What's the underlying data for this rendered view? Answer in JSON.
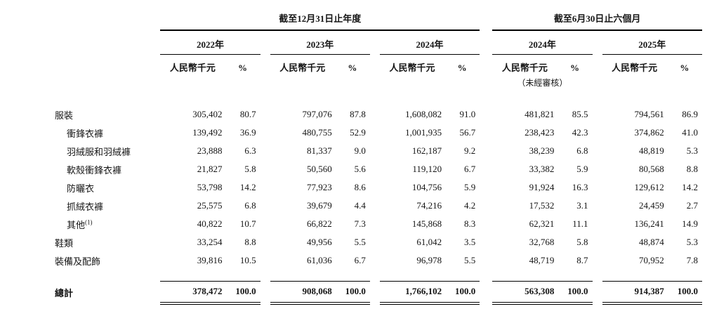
{
  "table": {
    "groups": [
      {
        "title": "截至12月31日止年度",
        "years": [
          "2022年",
          "2023年",
          "2024年"
        ]
      },
      {
        "title": "截至6月30日止六個月",
        "years": [
          "2024年",
          "2025年"
        ]
      }
    ],
    "col_headers": {
      "value": "人民幣千元",
      "pct": "%",
      "unaudited_note": "（未經審核）"
    },
    "rows": [
      {
        "label": "服裝",
        "indent": 0,
        "values": [
          "305,402",
          "80.7",
          "797,076",
          "87.8",
          "1,608,082",
          "91.0",
          "481,821",
          "85.5",
          "794,561",
          "86.9"
        ]
      },
      {
        "label": "衝鋒衣褲",
        "indent": 1,
        "values": [
          "139,492",
          "36.9",
          "480,755",
          "52.9",
          "1,001,935",
          "56.7",
          "238,423",
          "42.3",
          "374,862",
          "41.0"
        ]
      },
      {
        "label": "羽絨服和羽絨褲",
        "indent": 1,
        "values": [
          "23,888",
          "6.3",
          "81,337",
          "9.0",
          "162,187",
          "9.2",
          "38,239",
          "6.8",
          "48,819",
          "5.3"
        ]
      },
      {
        "label": "軟殼衝鋒衣褲",
        "indent": 1,
        "values": [
          "21,827",
          "5.8",
          "50,560",
          "5.6",
          "119,120",
          "6.7",
          "33,382",
          "5.9",
          "80,568",
          "8.8"
        ]
      },
      {
        "label": "防曬衣",
        "indent": 1,
        "values": [
          "53,798",
          "14.2",
          "77,923",
          "8.6",
          "104,756",
          "5.9",
          "91,924",
          "16.3",
          "129,612",
          "14.2"
        ]
      },
      {
        "label": "抓絨衣褲",
        "indent": 1,
        "values": [
          "25,575",
          "6.8",
          "39,679",
          "4.4",
          "74,216",
          "4.2",
          "17,532",
          "3.1",
          "24,459",
          "2.7"
        ]
      },
      {
        "label": "其他",
        "sup": "(1)",
        "indent": 1,
        "values": [
          "40,822",
          "10.7",
          "66,822",
          "7.3",
          "145,868",
          "8.3",
          "62,321",
          "11.1",
          "136,241",
          "14.9"
        ]
      },
      {
        "label": "鞋類",
        "indent": 0,
        "values": [
          "33,254",
          "8.8",
          "49,956",
          "5.5",
          "61,042",
          "3.5",
          "32,768",
          "5.8",
          "48,874",
          "5.3"
        ]
      },
      {
        "label": "裝備及配飾",
        "indent": 0,
        "values": [
          "39,816",
          "10.5",
          "61,036",
          "6.7",
          "96,978",
          "5.5",
          "48,719",
          "8.7",
          "70,952",
          "7.8"
        ]
      }
    ],
    "total": {
      "label": "總計",
      "values": [
        "378,472",
        "100.0",
        "908,068",
        "100.0",
        "1,766,102",
        "100.0",
        "563,308",
        "100.0",
        "914,387",
        "100.0"
      ]
    }
  }
}
